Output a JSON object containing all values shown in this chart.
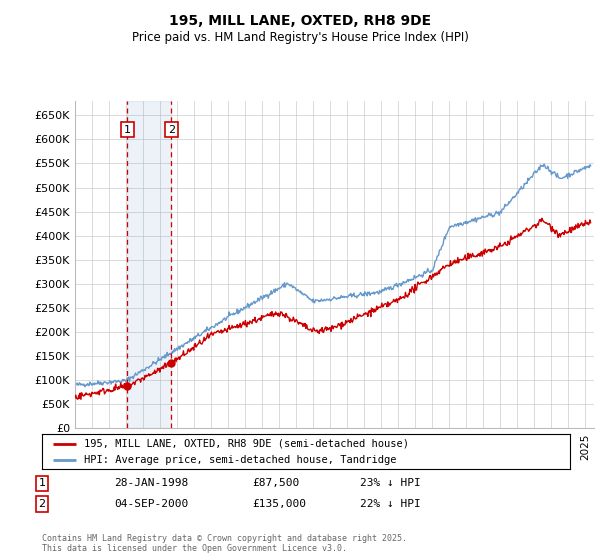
{
  "title": "195, MILL LANE, OXTED, RH8 9DE",
  "subtitle": "Price paid vs. HM Land Registry's House Price Index (HPI)",
  "ytick_values": [
    0,
    50000,
    100000,
    150000,
    200000,
    250000,
    300000,
    350000,
    400000,
    450000,
    500000,
    550000,
    600000,
    650000
  ],
  "ylim": [
    0,
    680000
  ],
  "xlim_start": 1995.0,
  "xlim_end": 2025.5,
  "legend_line1": "195, MILL LANE, OXTED, RH8 9DE (semi-detached house)",
  "legend_line2": "HPI: Average price, semi-detached house, Tandridge",
  "transaction1_date": "28-JAN-1998",
  "transaction1_price": "£87,500",
  "transaction1_pct": "23% ↓ HPI",
  "transaction2_date": "04-SEP-2000",
  "transaction2_price": "£135,000",
  "transaction2_pct": "22% ↓ HPI",
  "footer": "Contains HM Land Registry data © Crown copyright and database right 2025.\nThis data is licensed under the Open Government Licence v3.0.",
  "red_color": "#cc0000",
  "blue_color": "#6699cc",
  "vline1_x": 1998.07,
  "vline2_x": 2000.67,
  "marker1_x": 1998.07,
  "marker1_y": 87500,
  "marker2_x": 2000.67,
  "marker2_y": 135000,
  "background_color": "#ffffff",
  "grid_color": "#cccccc"
}
